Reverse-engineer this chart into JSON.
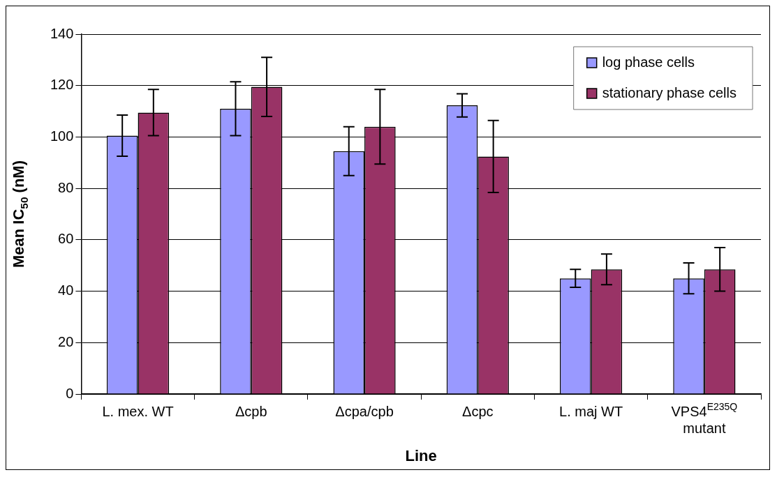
{
  "chart_data": {
    "type": "bar",
    "xlabel": "Line",
    "ylabel": "Mean IC$_{50}$ (nM)",
    "categories": [
      "L. mex. WT",
      "Δcpb",
      "Δcpa/cpb",
      "Δcpc",
      "L. maj WT",
      "VPS4$^{E235Q}$ mutant"
    ],
    "series": [
      {
        "name": "log phase cells",
        "color": "#9999ff",
        "values": [
          100.5,
          111,
          94.5,
          112.3,
          45,
          45
        ],
        "errors": [
          8,
          10.5,
          9.5,
          4.5,
          3.5,
          6
        ]
      },
      {
        "name": "stationary phase cells",
        "color": "#993366",
        "values": [
          109.5,
          119.5,
          104,
          92.4,
          48.5,
          48.5
        ],
        "errors": [
          9,
          11.5,
          14.5,
          14,
          6,
          8.5
        ]
      }
    ],
    "ylim": [
      0,
      140
    ],
    "yticks": [
      0,
      20,
      40,
      60,
      80,
      100,
      120,
      140
    ],
    "grid": "y",
    "legend": "top right"
  }
}
